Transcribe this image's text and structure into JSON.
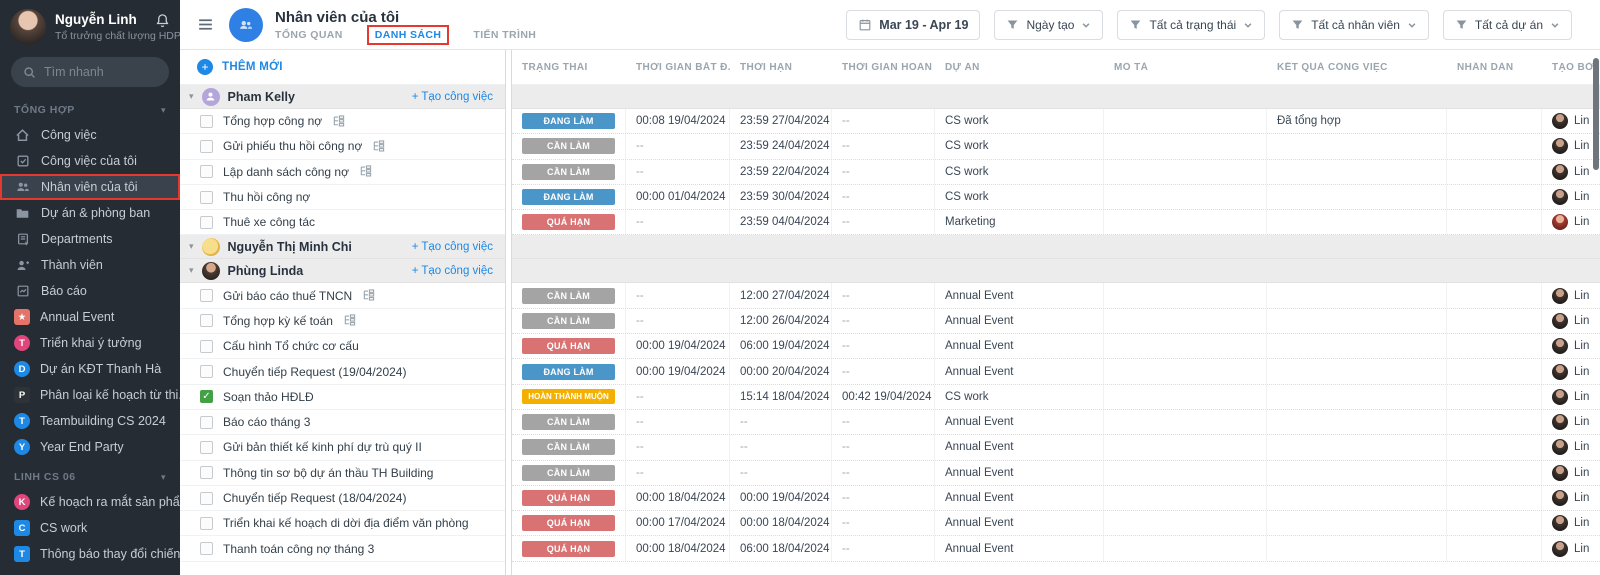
{
  "sidebar": {
    "user": {
      "name": "Nguyễn Linh",
      "role": "Tổ trưởng chất lượng HDPE"
    },
    "search_placeholder": "Tìm nhanh",
    "sections": [
      {
        "label": "TỔNG HỢP",
        "items": [
          {
            "label": "Công việc",
            "icon": "home"
          },
          {
            "label": "Công việc của tôi",
            "icon": "my-tasks"
          },
          {
            "label": "Nhân viên của tôi",
            "icon": "people",
            "selected": true
          },
          {
            "label": "Dự án & phòng ban",
            "icon": "folder"
          },
          {
            "label": "Departments",
            "icon": "department"
          },
          {
            "label": "Thành viên",
            "icon": "member"
          },
          {
            "label": "Báo cáo",
            "icon": "report"
          },
          {
            "label": "Annual Event",
            "badge": {
              "shape": "square",
              "color": "#E57368",
              "glyph": "★"
            }
          },
          {
            "label": "Triển khai ý tưởng",
            "badge": {
              "shape": "circle",
              "color": "#E0457B",
              "glyph": "T"
            }
          },
          {
            "label": "Dự án KĐT Thanh Hà",
            "badge": {
              "shape": "circle",
              "color": "#1E88E5",
              "glyph": "D"
            }
          },
          {
            "label": "Phân loại kế hoạch từ thi...",
            "badge": {
              "shape": "square",
              "color": "#2E3338",
              "glyph": "P"
            }
          },
          {
            "label": "Teambuilding CS 2024",
            "badge": {
              "shape": "circle",
              "color": "#1E88E5",
              "glyph": "T"
            }
          },
          {
            "label": "Year End Party",
            "badge": {
              "shape": "circle",
              "color": "#1E88E5",
              "glyph": "Y"
            }
          }
        ]
      },
      {
        "label": "LINH CS 06",
        "items": [
          {
            "label": "Kế hoạch ra mắt sản phẩ...",
            "badge": {
              "shape": "circle",
              "color": "#E0457B",
              "glyph": "K"
            }
          },
          {
            "label": "CS work",
            "badge": {
              "shape": "square",
              "color": "#1E88E5",
              "glyph": "C"
            }
          },
          {
            "label": "Thông báo thay đổi chiến...",
            "badge": {
              "shape": "square",
              "color": "#1E88E5",
              "glyph": "T"
            }
          }
        ]
      }
    ]
  },
  "header": {
    "title": "Nhân viên của tôi",
    "tabs": [
      {
        "label": "TỔNG QUAN",
        "active": false
      },
      {
        "label": "DANH SÁCH",
        "active": true
      },
      {
        "label": "TIẾN TRÌNH",
        "active": false
      }
    ]
  },
  "toolbar": {
    "buttons": [
      {
        "type": "date",
        "label": "Mar 19 - Apr 19"
      },
      {
        "type": "filter",
        "label": "Ngày tạo"
      },
      {
        "type": "filter",
        "label": "Tất cả trạng thái"
      },
      {
        "type": "filter",
        "label": "Tất cả nhân viên"
      },
      {
        "type": "filter",
        "label": "Tất cả dự án"
      }
    ]
  },
  "panel": {
    "add_new": "THÊM MỚI",
    "create_task": "+ Tạo công việc"
  },
  "table": {
    "columns": [
      "TRẠNG THÁI",
      "THỜI GIAN BẮT Đ...",
      "THỜI HẠN",
      "THỜI GIAN HOÀN ...",
      "DỰ ÁN",
      "MÔ TẢ",
      "KẾT QUẢ CÔNG VIỆC",
      "NHÃN DÁN",
      "TẠO BỞI"
    ]
  },
  "status_styles": {
    "doing": {
      "label": "ĐANG LÀM",
      "color": "#4A96C8"
    },
    "todo": {
      "label": "CẦN LÀM",
      "color": "#A4A4A4"
    },
    "overdue": {
      "label": "QUÁ HẠN",
      "color": "#D97373"
    },
    "late": {
      "label": "HOÀN THÀNH MUỘN",
      "color": "#F4B000"
    }
  },
  "groups": [
    {
      "name": "Pham Kelly",
      "avatar": "purple-person",
      "tasks": [
        {
          "title": "Tổng hợp công nợ",
          "subtasks": true,
          "checked": false,
          "status": "doing",
          "start": "00:08 19/04/2024",
          "due": "23:59 27/04/2024",
          "done": "--",
          "project": "CS work",
          "description": "",
          "result": "Đã tổng hợp",
          "labels": "",
          "creator": "Lin",
          "creator_avatar": "dark"
        },
        {
          "title": "Gửi phiếu thu hồi công nợ",
          "subtasks": true,
          "checked": false,
          "status": "todo",
          "start": "--",
          "due": "23:59 24/04/2024",
          "done": "--",
          "project": "CS work",
          "description": "",
          "result": "",
          "labels": "",
          "creator": "Lin",
          "creator_avatar": "dark"
        },
        {
          "title": "Lập danh sách công nợ",
          "subtasks": true,
          "checked": false,
          "status": "todo",
          "start": "--",
          "due": "23:59 22/04/2024",
          "done": "--",
          "project": "CS work",
          "description": "",
          "result": "",
          "labels": "",
          "creator": "Lin",
          "creator_avatar": "dark"
        },
        {
          "title": "Thu hồi công nợ",
          "subtasks": false,
          "checked": false,
          "status": "doing",
          "start": "00:00 01/04/2024",
          "due": "23:59 30/04/2024",
          "done": "--",
          "project": "CS work",
          "description": "",
          "result": "",
          "labels": "",
          "creator": "Lin",
          "creator_avatar": "dark"
        },
        {
          "title": "Thuê xe công tác",
          "subtasks": false,
          "checked": false,
          "status": "overdue",
          "start": "--",
          "due": "23:59 04/04/2024",
          "done": "--",
          "project": "Marketing",
          "description": "",
          "result": "",
          "labels": "",
          "creator": "Lin",
          "creator_avatar": "red"
        }
      ]
    },
    {
      "name": "Nguyễn Thị Minh Chi",
      "avatar": "yellow-photo",
      "tasks": []
    },
    {
      "name": "Phùng Linda",
      "avatar": "photo",
      "tasks": [
        {
          "title": "Gửi báo cáo thuế TNCN",
          "subtasks": true,
          "checked": false,
          "status": "todo",
          "start": "--",
          "due": "12:00 27/04/2024",
          "done": "--",
          "project": "Annual Event",
          "description": "",
          "result": "",
          "labels": "",
          "creator": "Lin",
          "creator_avatar": "dark"
        },
        {
          "title": "Tổng hợp kỳ kế toán",
          "subtasks": true,
          "checked": false,
          "status": "todo",
          "start": "--",
          "due": "12:00 26/04/2024",
          "done": "--",
          "project": "Annual Event",
          "description": "",
          "result": "",
          "labels": "",
          "creator": "Lin",
          "creator_avatar": "dark"
        },
        {
          "title": "Cấu hình Tổ chức cơ cấu",
          "subtasks": false,
          "checked": false,
          "status": "overdue",
          "start": "00:00 19/04/2024",
          "due": "06:00 19/04/2024",
          "done": "--",
          "project": "Annual Event",
          "description": "",
          "result": "",
          "labels": "",
          "creator": "Lin",
          "creator_avatar": "dark"
        },
        {
          "title": "Chuyển tiếp Request (19/04/2024)",
          "subtasks": false,
          "checked": false,
          "status": "doing",
          "start": "00:00 19/04/2024",
          "due": "00:00 20/04/2024",
          "done": "--",
          "project": "Annual Event",
          "description": "",
          "result": "",
          "labels": "",
          "creator": "Lin",
          "creator_avatar": "dark"
        },
        {
          "title": "Soạn thảo HĐLĐ",
          "subtasks": false,
          "checked": true,
          "status": "late",
          "start": "--",
          "due": "15:14 18/04/2024",
          "done": "00:42 19/04/2024",
          "project": "CS work",
          "description": "",
          "result": "",
          "labels": "",
          "creator": "Lin",
          "creator_avatar": "dark"
        },
        {
          "title": "Báo cáo tháng 3",
          "subtasks": false,
          "checked": false,
          "status": "todo",
          "start": "--",
          "due": "--",
          "done": "--",
          "project": "Annual Event",
          "description": "",
          "result": "",
          "labels": "",
          "creator": "Lin",
          "creator_avatar": "dark"
        },
        {
          "title": "Gửi bản thiết kế kinh phí dự trù quý II",
          "subtasks": false,
          "checked": false,
          "status": "todo",
          "start": "--",
          "due": "--",
          "done": "--",
          "project": "Annual Event",
          "description": "",
          "result": "",
          "labels": "",
          "creator": "Lin",
          "creator_avatar": "dark"
        },
        {
          "title": "Thông tin sơ bộ dự án thầu TH Building",
          "subtasks": false,
          "checked": false,
          "status": "todo",
          "start": "--",
          "due": "--",
          "done": "--",
          "project": "Annual Event",
          "description": "",
          "result": "",
          "labels": "",
          "creator": "Lin",
          "creator_avatar": "dark"
        },
        {
          "title": "Chuyển tiếp Request (18/04/2024)",
          "subtasks": false,
          "checked": false,
          "status": "overdue",
          "start": "00:00 18/04/2024",
          "due": "00:00 19/04/2024",
          "done": "--",
          "project": "Annual Event",
          "description": "",
          "result": "",
          "labels": "",
          "creator": "Lin",
          "creator_avatar": "dark"
        },
        {
          "title": "Triển khai kế hoạch di dời địa điểm văn phòng",
          "subtasks": false,
          "checked": false,
          "status": "overdue",
          "start": "00:00 17/04/2024",
          "due": "00:00 18/04/2024",
          "done": "--",
          "project": "Annual Event",
          "description": "",
          "result": "",
          "labels": "",
          "creator": "Lin",
          "creator_avatar": "dark"
        },
        {
          "title": "Thanh toán công nợ tháng 3",
          "subtasks": false,
          "checked": false,
          "status": "overdue",
          "start": "00:00 18/04/2024",
          "due": "06:00 18/04/2024",
          "done": "--",
          "project": "Annual Event",
          "description": "",
          "result": "",
          "labels": "",
          "creator": "Lin",
          "creator_avatar": "dark"
        }
      ]
    }
  ]
}
